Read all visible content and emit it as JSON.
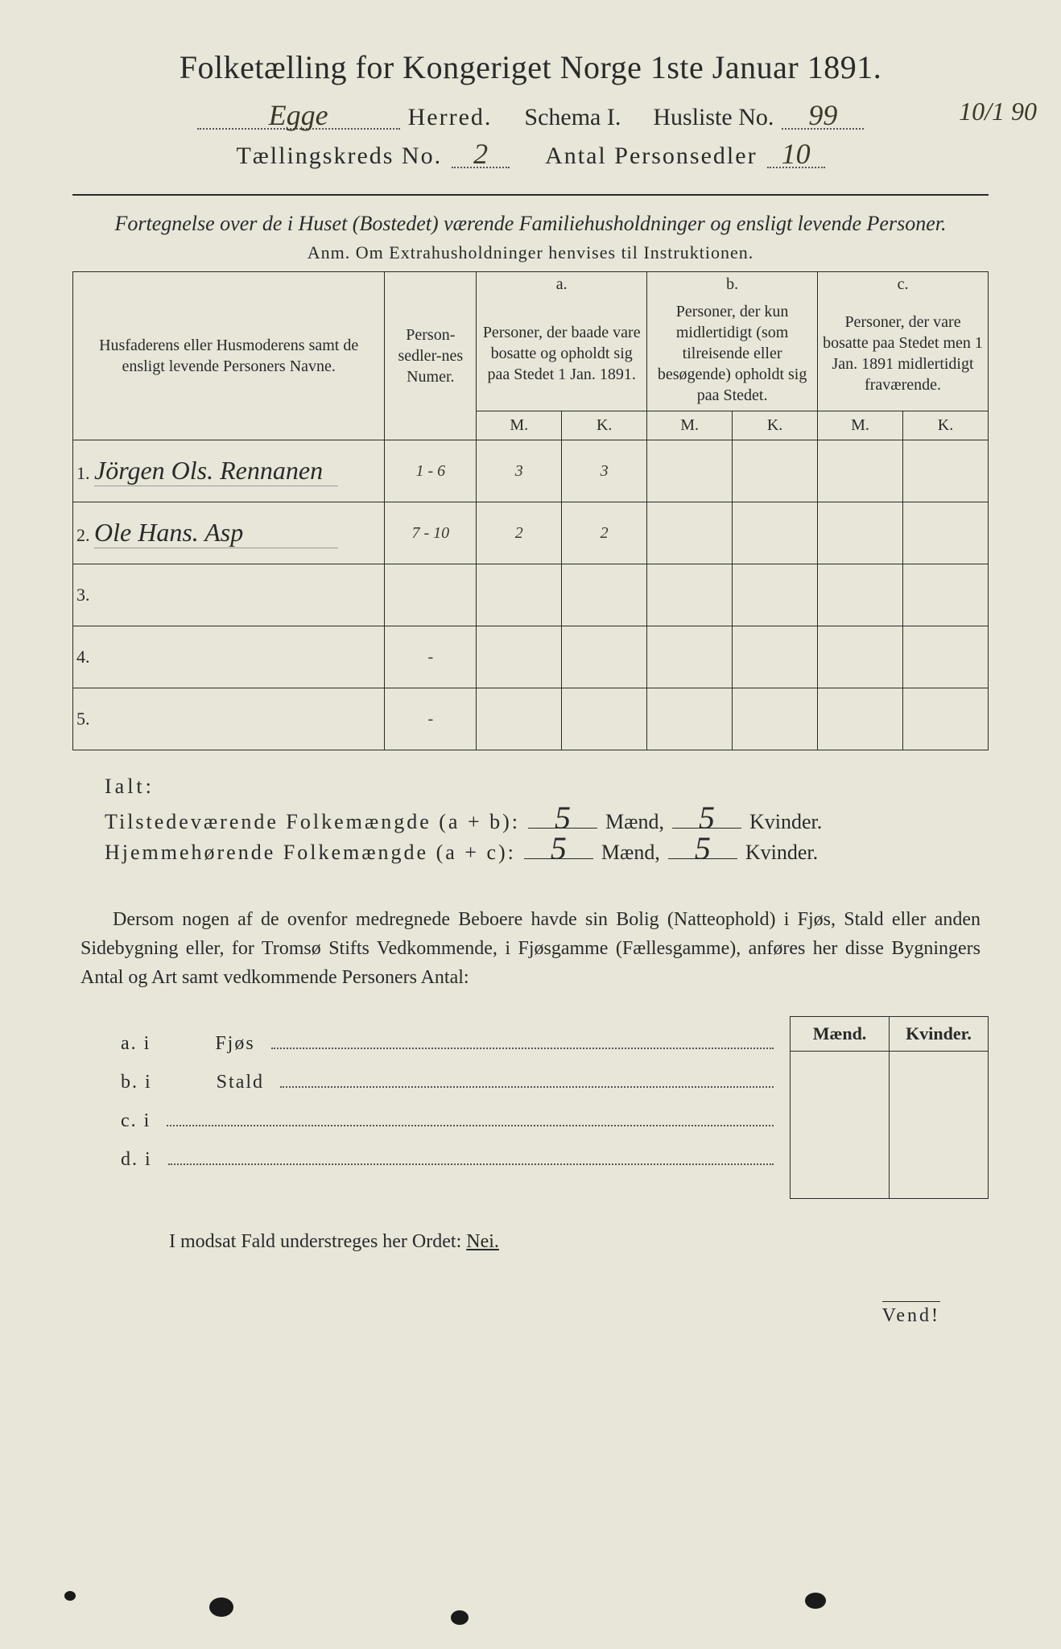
{
  "title": "Folketælling for Kongeriget Norge 1ste Januar 1891.",
  "line2": {
    "herred_value": "Egge",
    "herred_label": "Herred.",
    "schema_label": "Schema I.",
    "husliste_label": "Husliste No.",
    "husliste_value": "99"
  },
  "side_annotation": "10/1 90",
  "line3": {
    "kreds_label": "Tællingskreds No.",
    "kreds_value": "2",
    "antal_label": "Antal Personsedler",
    "antal_value": "10"
  },
  "fortegnelse": "Fortegnelse over de i Huset (Bostedet) værende Familiehusholdninger og ensligt levende Personer.",
  "anm": "Anm.  Om Extrahusholdninger henvises til Instruktionen.",
  "table": {
    "head_names": "Husfaderens eller Husmoderens samt de ensligt levende Personers Navne.",
    "head_numer": "Person-sedler-nes Numer.",
    "head_a_label": "a.",
    "head_a": "Personer, der baade vare bosatte og opholdt sig paa Stedet 1 Jan. 1891.",
    "head_b_label": "b.",
    "head_b": "Personer, der kun midlertidigt (som tilreisende eller besøgende) opholdt sig paa Stedet.",
    "head_c_label": "c.",
    "head_c": "Personer, der vare bosatte paa Stedet men 1 Jan. 1891 midlertidigt fraværende.",
    "M": "M.",
    "K": "K.",
    "rows": [
      {
        "n": "1.",
        "name": "Jörgen Ols. Rennanen",
        "numer": "1 - 6",
        "aM": "3",
        "aK": "3",
        "bM": "",
        "bK": "",
        "cM": "",
        "cK": ""
      },
      {
        "n": "2.",
        "name": "Ole Hans. Asp",
        "numer": "7 - 10",
        "aM": "2",
        "aK": "2",
        "bM": "",
        "bK": "",
        "cM": "",
        "cK": ""
      },
      {
        "n": "3.",
        "name": "",
        "numer": "",
        "aM": "",
        "aK": "",
        "bM": "",
        "bK": "",
        "cM": "",
        "cK": ""
      },
      {
        "n": "4.",
        "name": "",
        "numer": "-",
        "aM": "",
        "aK": "",
        "bM": "",
        "bK": "",
        "cM": "",
        "cK": ""
      },
      {
        "n": "5.",
        "name": "",
        "numer": "-",
        "aM": "",
        "aK": "",
        "bM": "",
        "bK": "",
        "cM": "",
        "cK": ""
      }
    ]
  },
  "ialt": "Ialt:",
  "totals": {
    "tilstede_label": "Tilstedeværende Folkemængde (a + b):",
    "hjemme_label": "Hjemmehørende Folkemængde (a + c):",
    "maend": "Mænd,",
    "kvinder": "Kvinder.",
    "tilstede_M": "5",
    "tilstede_K": "5",
    "hjemme_M": "5",
    "hjemme_K": "5"
  },
  "paragraph": "Dersom nogen af de ovenfor medregnede Beboere havde sin Bolig (Natteophold) i Fjøs, Stald eller anden Sidebygning eller, for Tromsø Stifts Vedkommende, i Fjøsgamme (Fællesgamme), anføres her disse Bygningers Antal og Art samt vedkommende Personers Antal:",
  "mk_head_M": "Mænd.",
  "mk_head_K": "Kvinder.",
  "abcd": {
    "a": {
      "prefix": "a.  i",
      "label": "Fjøs"
    },
    "b": {
      "prefix": "b.  i",
      "label": "Stald"
    },
    "c": {
      "prefix": "c.  i"
    },
    "d": {
      "prefix": "d.  i"
    }
  },
  "modsat": "I modsat Fald understreges her Ordet: ",
  "nei": "Nei.",
  "vend": "Vend!"
}
